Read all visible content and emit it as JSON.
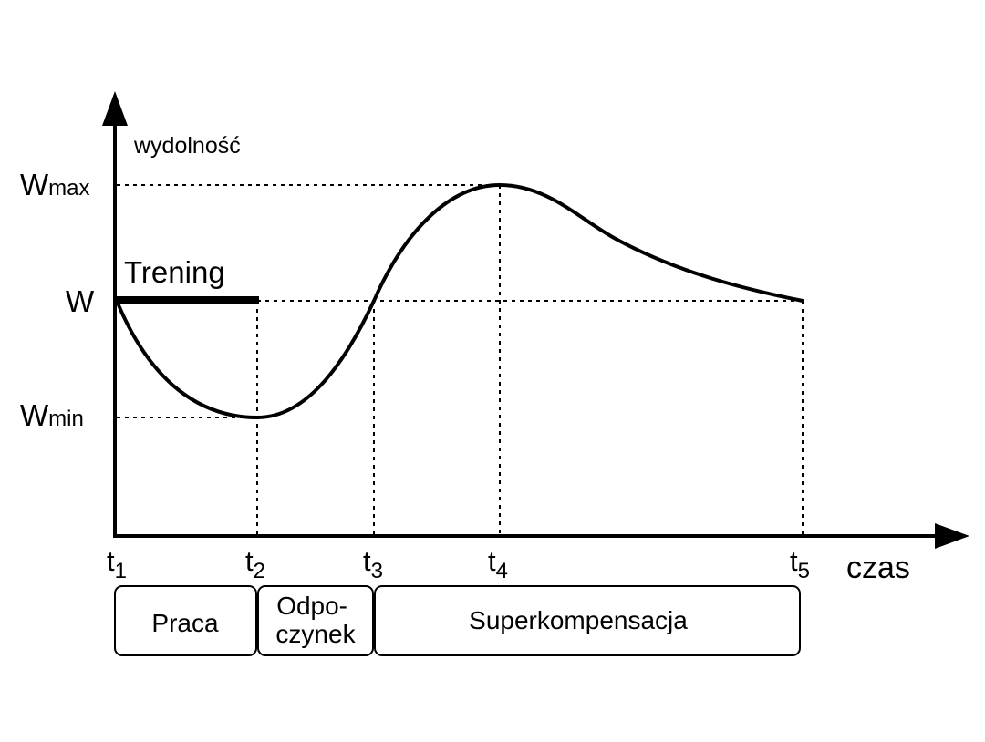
{
  "y_axis": {
    "label": "wydolność"
  },
  "x_axis": {
    "label": "czas"
  },
  "levels": {
    "w_max": {
      "main": "W",
      "sub": "max"
    },
    "w": {
      "main": "W",
      "sub": ""
    },
    "w_min": {
      "main": "W",
      "sub": "min"
    }
  },
  "times": [
    {
      "main": "t",
      "sub": "1"
    },
    {
      "main": "t",
      "sub": "2"
    },
    {
      "main": "t",
      "sub": "3"
    },
    {
      "main": "t",
      "sub": "4"
    },
    {
      "main": "t",
      "sub": "5"
    }
  ],
  "training": {
    "label": "Trening"
  },
  "phases": [
    {
      "lines": [
        "Praca"
      ]
    },
    {
      "lines": [
        "Odpo-",
        "czynek"
      ]
    },
    {
      "lines": [
        "Superkompensacja"
      ]
    }
  ]
}
